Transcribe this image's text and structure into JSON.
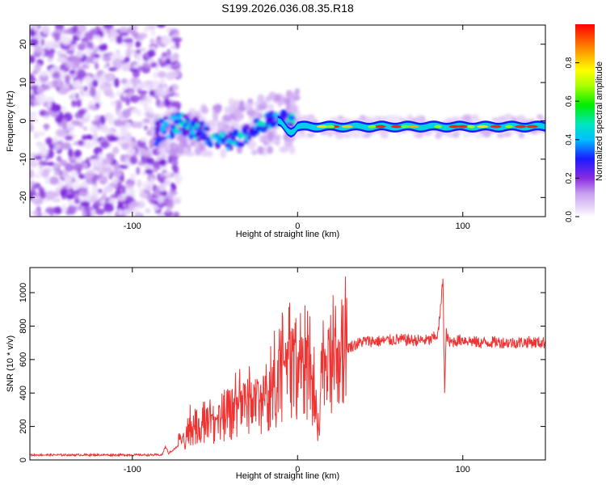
{
  "title": "S199.2026.036.08.35.R18",
  "chart_data": [
    {
      "type": "heatmap",
      "title": "S199.2026.036.08.35.R18",
      "xlabel": "Height of straight line (km)",
      "ylabel": "Frequency (Hz)",
      "xlim": [
        -162,
        150
      ],
      "ylim": [
        -25,
        25
      ],
      "xticks": [
        -100,
        0,
        100
      ],
      "yticks": [
        -20,
        -10,
        0,
        10,
        20
      ],
      "colorbar": {
        "label": "Normalized spectral amplitude",
        "range": [
          0.0,
          1.0
        ],
        "ticks": [
          "0.0",
          "0.2",
          "0.4",
          "0.6",
          "0.8"
        ]
      },
      "features": {
        "noise_region_x": [
          -162,
          -78
        ],
        "transition_region_x": [
          -88,
          0
        ],
        "ridge_start_freq_hz": -4,
        "ridge_freq_hz": -1.5,
        "ridge_region_x": [
          0,
          150
        ]
      }
    },
    {
      "type": "line",
      "xlabel": "Height of straight line (km)",
      "ylabel": "SNR (10 * v/v)",
      "xlim": [
        -162,
        150
      ],
      "ylim": [
        0,
        1150
      ],
      "xticks": [
        -100,
        0,
        100
      ],
      "yticks": [
        0,
        200,
        400,
        600,
        800,
        1000
      ],
      "series": [
        {
          "name": "SNR",
          "color": "#ee3333",
          "x": [
            -162,
            -130,
            -100,
            -82,
            -80,
            -78,
            -70,
            -65,
            -60,
            -55,
            -50,
            -45,
            -40,
            -35,
            -30,
            -25,
            -20,
            -15,
            -10,
            -8,
            -5,
            0,
            5,
            10,
            11,
            13,
            15,
            20,
            25,
            30,
            40,
            50,
            60,
            70,
            80,
            85,
            87,
            88,
            89,
            90,
            91,
            92,
            95,
            100,
            110,
            120,
            130,
            140,
            150
          ],
          "values": [
            30,
            30,
            30,
            30,
            80,
            40,
            100,
            180,
            200,
            210,
            200,
            230,
            260,
            300,
            320,
            350,
            320,
            400,
            450,
            520,
            500,
            460,
            520,
            420,
            240,
            180,
            450,
            540,
            600,
            670,
            710,
            710,
            720,
            715,
            715,
            750,
            950,
            1100,
            400,
            760,
            720,
            700,
            710,
            720,
            700,
            705,
            700,
            705,
            700
          ]
        }
      ]
    }
  ]
}
